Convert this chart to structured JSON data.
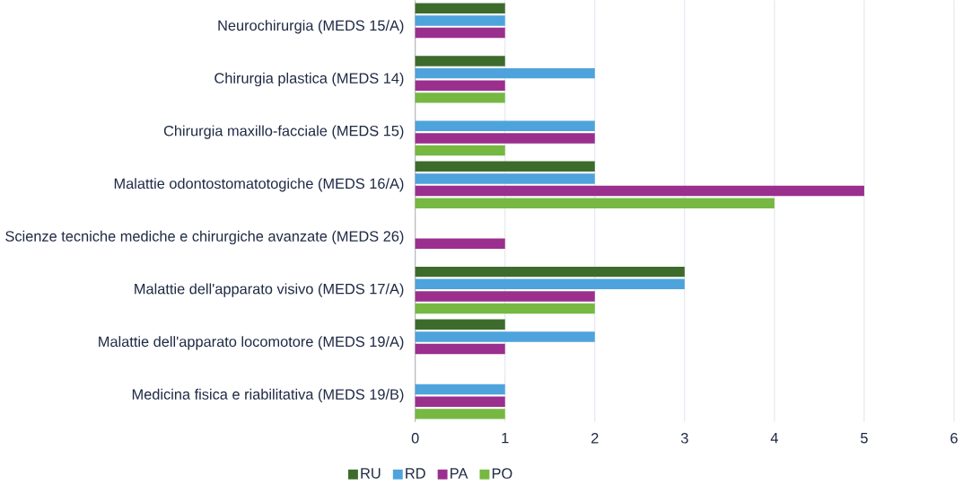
{
  "chart_data": {
    "type": "bar",
    "orientation": "horizontal",
    "categories": [
      "Neurochirurgia (MEDS 15/A)",
      "Chirurgia plastica (MEDS 14)",
      "Chirurgia maxillo-facciale (MEDS 15)",
      "Malattie odontostomatotogiche  (MEDS 16/A)",
      "Scienze tecniche mediche e chirurgiche avanzate (MEDS 26)",
      "Malattie dell'apparato visivo (MEDS 17/A)",
      "Malattie dell'apparato locomotore  (MEDS 19/A)",
      "Medicina fisica e riabilitativa (MEDS 19/B)"
    ],
    "series": [
      {
        "name": "RU",
        "color": "#3d6b2c",
        "values": [
          1,
          1,
          null,
          2,
          null,
          3,
          1,
          null
        ]
      },
      {
        "name": "RD",
        "color": "#4ea3dc",
        "values": [
          1,
          2,
          2,
          2,
          null,
          3,
          2,
          1
        ]
      },
      {
        "name": "PA",
        "color": "#9a2f8e",
        "values": [
          1,
          1,
          2,
          5,
          1,
          2,
          1,
          1
        ]
      },
      {
        "name": "PO",
        "color": "#76b842",
        "values": [
          null,
          1,
          1,
          4,
          null,
          2,
          null,
          1
        ]
      }
    ],
    "xlim": [
      0,
      6
    ],
    "xticks": [
      0,
      1,
      2,
      3,
      4,
      5,
      6
    ],
    "grid": "x",
    "legend": "bottom"
  }
}
